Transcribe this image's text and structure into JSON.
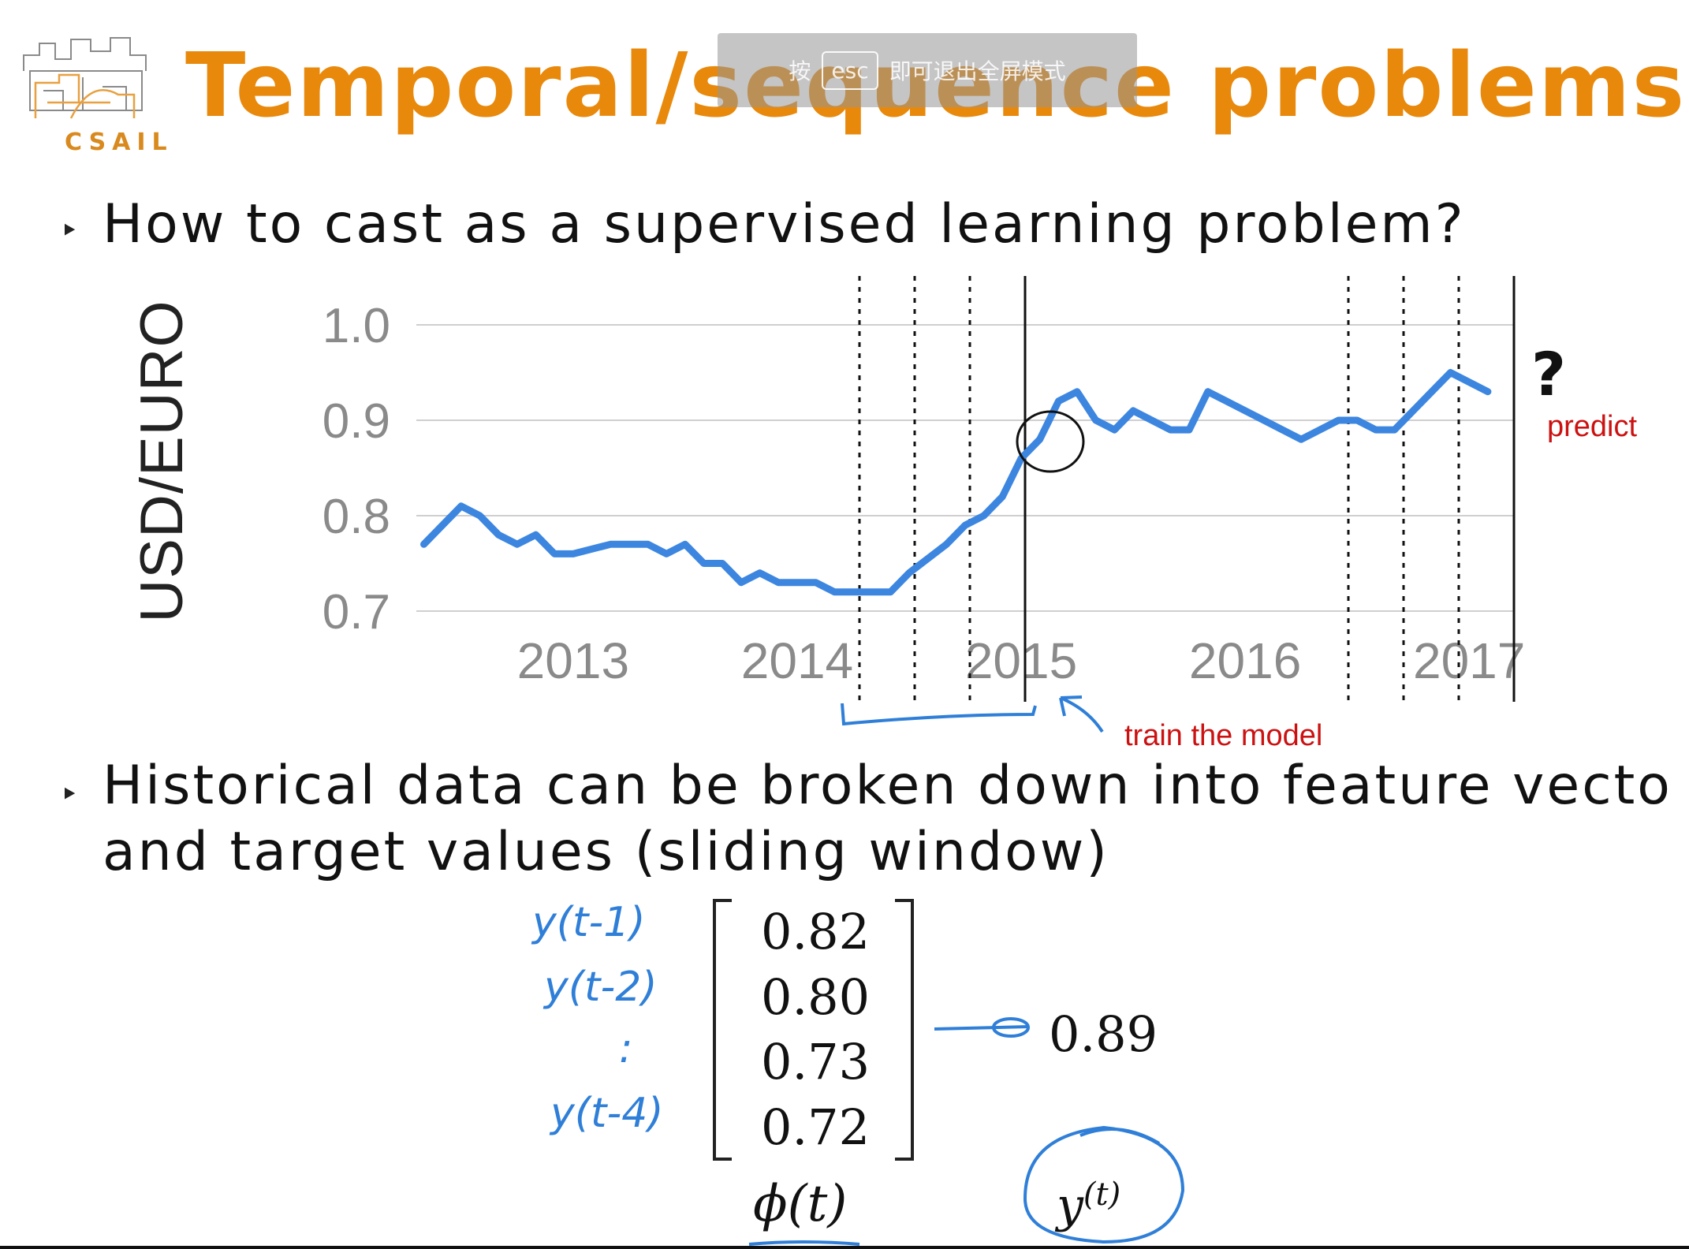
{
  "slide": {
    "title": "Temporal/sequence problems",
    "logo_text": "CSAIL",
    "bullet1": "How to cast as a supervised learning problem?",
    "bullet2_line1": "Historical data can be broken down into feature vecto",
    "bullet2_line2": "and target values (sliding window)"
  },
  "toast": {
    "prefix": "按",
    "key": "esc",
    "suffix": "即可退出全屏模式"
  },
  "annotations": {
    "question_mark": "?",
    "predict": "predict",
    "train": "train the model"
  },
  "feature_vector": {
    "values": [
      "0.82",
      "0.80",
      "0.73",
      "0.72"
    ],
    "labels": [
      "y(t-1)",
      "y(t-2)",
      ":",
      "y(t-4)"
    ],
    "target": "0.89",
    "phi_label": "ϕ(t)",
    "y_label": "y",
    "y_sup": "(t)"
  },
  "colors": {
    "title": "#e8890c",
    "series": "#3d86e0",
    "ink": "#2f7fd8",
    "red": "#cc1111"
  },
  "chart_data": {
    "type": "line",
    "ylabel": "USD/EURO",
    "ylim": [
      0.7,
      1.0
    ],
    "yticks": [
      "1.0",
      "0.9",
      "0.8",
      "0.7"
    ],
    "xticks": [
      "2013",
      "2014",
      "2015",
      "2016",
      "2017"
    ],
    "grid": true,
    "series": [
      {
        "values": [
          [
            "2012-05",
            0.77
          ],
          [
            "2012-06",
            0.79
          ],
          [
            "2012-07",
            0.81
          ],
          [
            "2012-08",
            0.8
          ],
          [
            "2012-09",
            0.78
          ],
          [
            "2012-10",
            0.77
          ],
          [
            "2012-11",
            0.78
          ],
          [
            "2012-12",
            0.76
          ],
          [
            "2013-01",
            0.76
          ],
          [
            "2013-03",
            0.77
          ],
          [
            "2013-05",
            0.77
          ],
          [
            "2013-06",
            0.76
          ],
          [
            "2013-07",
            0.77
          ],
          [
            "2013-08",
            0.75
          ],
          [
            "2013-09",
            0.75
          ],
          [
            "2013-10",
            0.73
          ],
          [
            "2013-11",
            0.74
          ],
          [
            "2013-12",
            0.73
          ],
          [
            "2014-02",
            0.73
          ],
          [
            "2014-03",
            0.72
          ],
          [
            "2014-04",
            0.72
          ],
          [
            "2014-06",
            0.72
          ],
          [
            "2014-07",
            0.74
          ],
          [
            "2014-09",
            0.77
          ],
          [
            "2014-10",
            0.79
          ],
          [
            "2014-11",
            0.8
          ],
          [
            "2014-12",
            0.82
          ],
          [
            "2015-01",
            0.86
          ],
          [
            "2015-02",
            0.88
          ],
          [
            "2015-03",
            0.92
          ],
          [
            "2015-04",
            0.93
          ],
          [
            "2015-05",
            0.9
          ],
          [
            "2015-06",
            0.89
          ],
          [
            "2015-07",
            0.91
          ],
          [
            "2015-08",
            0.9
          ],
          [
            "2015-09",
            0.89
          ],
          [
            "2015-10",
            0.89
          ],
          [
            "2015-11",
            0.93
          ],
          [
            "2015-12",
            0.92
          ],
          [
            "2016-01",
            0.91
          ],
          [
            "2016-02",
            0.9
          ],
          [
            "2016-03",
            0.89
          ],
          [
            "2016-04",
            0.88
          ],
          [
            "2016-05",
            0.89
          ],
          [
            "2016-06",
            0.9
          ],
          [
            "2016-07",
            0.9
          ],
          [
            "2016-08",
            0.89
          ],
          [
            "2016-09",
            0.89
          ],
          [
            "2016-10",
            0.91
          ],
          [
            "2016-11",
            0.93
          ],
          [
            "2016-12",
            0.95
          ],
          [
            "2017-01",
            0.94
          ],
          [
            "2017-02",
            0.93
          ]
        ]
      }
    ]
  }
}
